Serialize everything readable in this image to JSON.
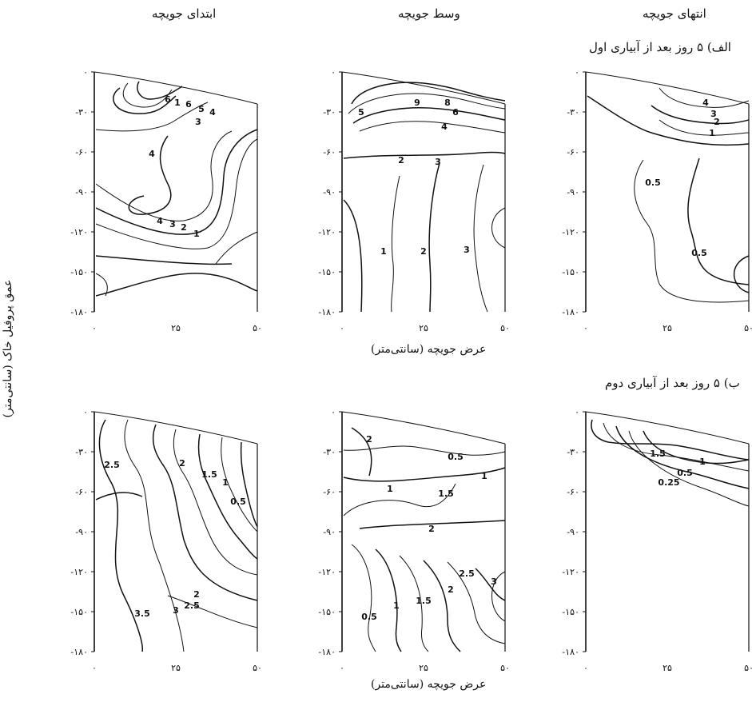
{
  "columns": [
    "ابتدای جویچه",
    "وسط جویچه",
    "انتهای جویچه"
  ],
  "rows": [
    "الف) ۵ روز بعد از آبیاری اول",
    "ب) ۵ روز بعد از آبیاری دوم"
  ],
  "x_label": "عرض جویچه (سانتی‌متر)",
  "y_label": "عمق پروفیل خاک (سانتی‌متر)",
  "y_ticks": [
    "۰",
    "-۳۰",
    "-۶۰",
    "-۹۰",
    "-۱۲۰",
    "-۱۵۰",
    "-۱۸۰"
  ],
  "x_ticks": [
    "۰",
    "۲۵",
    "۵۰"
  ],
  "chart_data": [
    {
      "type": "contour",
      "panel": "row1-start",
      "xlim": [
        0,
        50
      ],
      "ylim": [
        -180,
        0
      ],
      "contour_labels": [
        "6",
        "1",
        "6",
        "5",
        "4",
        "3",
        "4",
        "4",
        "3",
        "2",
        "1"
      ]
    },
    {
      "type": "contour",
      "panel": "row1-middle",
      "xlim": [
        0,
        50
      ],
      "ylim": [
        -180,
        0
      ],
      "contour_labels": [
        "5",
        "9",
        "8",
        "6",
        "4",
        "3",
        "2",
        "1",
        "2",
        "3"
      ]
    },
    {
      "type": "contour",
      "panel": "row1-end",
      "xlim": [
        0,
        50
      ],
      "ylim": [
        -180,
        0
      ],
      "contour_labels": [
        "4",
        "3",
        "2",
        "1",
        "0.5",
        "0.5"
      ]
    },
    {
      "type": "contour",
      "panel": "row2-start",
      "xlim": [
        0,
        50
      ],
      "ylim": [
        -180,
        0
      ],
      "contour_labels": [
        "2.5",
        "2",
        "1.5",
        "1",
        "0.5",
        "2",
        "2.5",
        "3",
        "3.5"
      ]
    },
    {
      "type": "contour",
      "panel": "row2-middle",
      "xlim": [
        0,
        50
      ],
      "ylim": [
        -180,
        0
      ],
      "contour_labels": [
        "2",
        "0.5",
        "1",
        "1.5",
        "1",
        "2",
        "0.5",
        "1",
        "1.5",
        "2",
        "2.5",
        "3"
      ]
    },
    {
      "type": "contour",
      "panel": "row2-end",
      "xlim": [
        0,
        50
      ],
      "ylim": [
        -180,
        0
      ],
      "contour_labels": [
        "1.5",
        "1",
        "0.5",
        "0.25"
      ]
    }
  ]
}
